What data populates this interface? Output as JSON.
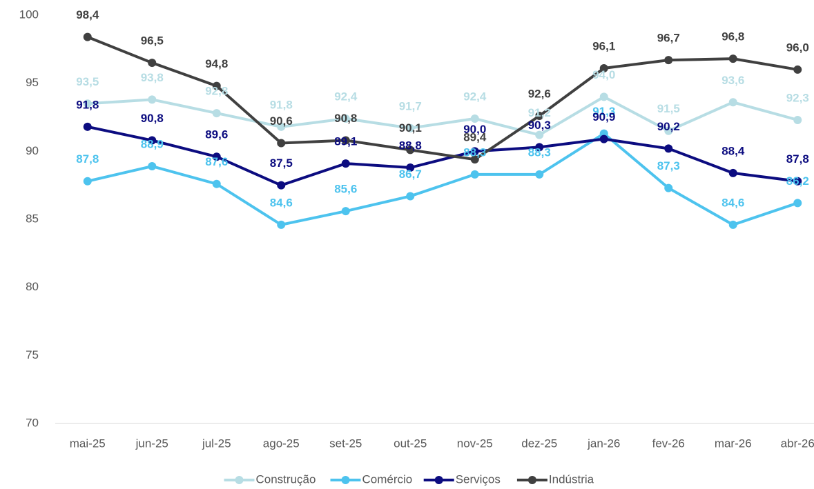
{
  "chart_data": {
    "type": "line",
    "categories": [
      "mai-25",
      "jun-25",
      "jul-25",
      "ago-25",
      "set-25",
      "out-25",
      "nov-25",
      "dez-25",
      "jan-26",
      "fev-26",
      "mar-26",
      "abr-26"
    ],
    "series": [
      {
        "name": "Construção",
        "color": "#b7dde4",
        "values": [
          93.5,
          93.8,
          92.8,
          91.8,
          92.4,
          91.7,
          92.4,
          91.2,
          94.0,
          91.5,
          93.6,
          92.3
        ],
        "value_labels": [
          "93,5",
          "93,8",
          "92,8",
          "91,8",
          "92,4",
          "91,7",
          "92,4",
          "91,2",
          "94,0",
          "91,5",
          "93,6",
          "92,3"
        ]
      },
      {
        "name": "Comércio",
        "color": "#4dc3ee",
        "values": [
          87.8,
          88.9,
          87.6,
          84.6,
          85.6,
          86.7,
          88.3,
          88.3,
          91.3,
          87.3,
          84.6,
          86.2
        ],
        "value_labels": [
          "87,8",
          "88,9",
          "87,6",
          "84,6",
          "85,6",
          "86,7",
          "88,3",
          "88,3",
          "91,3",
          "87,3",
          "84,6",
          "86,2"
        ]
      },
      {
        "name": "Serviços",
        "color": "#0c0c80",
        "values": [
          91.8,
          90.8,
          89.6,
          87.5,
          89.1,
          88.8,
          90.0,
          90.3,
          90.9,
          90.2,
          88.4,
          87.8
        ],
        "value_labels": [
          "91,8",
          "90,8",
          "89,6",
          "87,5",
          "89,1",
          "88,8",
          "90,0",
          "90,3",
          "90,9",
          "90,2",
          "88,4",
          "87,8"
        ]
      },
      {
        "name": "Indústria",
        "color": "#404040",
        "values": [
          98.4,
          96.5,
          94.8,
          90.6,
          90.8,
          90.1,
          89.4,
          92.6,
          96.1,
          96.7,
          96.8,
          96.0
        ],
        "value_labels": [
          "98,4",
          "96,5",
          "94,8",
          "90,6",
          "90,8",
          "90,1",
          "89,4",
          "92,6",
          "96,1",
          "96,7",
          "96,8",
          "96,0"
        ]
      }
    ],
    "ylim": [
      70,
      100
    ],
    "yticks": [
      70,
      75,
      80,
      85,
      90,
      95,
      100
    ],
    "grid": false,
    "legend": "bottom"
  }
}
